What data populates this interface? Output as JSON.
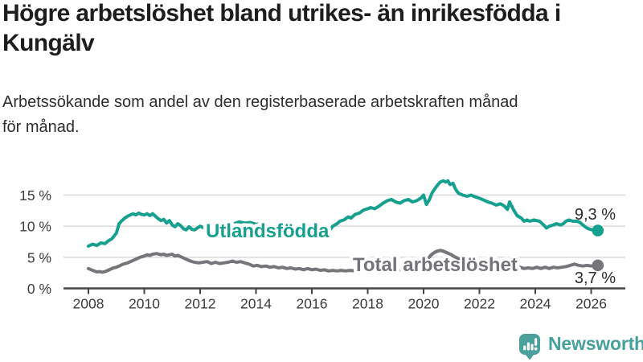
{
  "header": {
    "title": {
      "line1": "Högre arbetslöshet bland utrikes- än inrikesfödda i",
      "line2": "Kungälv"
    },
    "subtitle": {
      "line1": "Arbetssökande som andel av den registerbaserade arbetskraften månad",
      "line2": "för månad."
    }
  },
  "chart_data": {
    "type": "line",
    "title": "Högre arbetslöshet bland utrikes- än inrikesfödda i Kungälv",
    "subtitle": "Arbetssökande som andel av den registerbaserade arbetskraften månad för månad.",
    "unit": "%",
    "grid": true,
    "legend_position": "inline-on-line",
    "x_axis": {
      "range": [
        2007.1,
        2027.2
      ],
      "ticks": [
        {
          "year": 2008,
          "label": "2008"
        },
        {
          "year": 2010,
          "label": "2010"
        },
        {
          "year": 2012,
          "label": "2012"
        },
        {
          "year": 2014,
          "label": "2014"
        },
        {
          "year": 2016,
          "label": "2016"
        },
        {
          "year": 2018,
          "label": "2018"
        },
        {
          "year": 2020,
          "label": "2020"
        },
        {
          "year": 2022,
          "label": "2022"
        },
        {
          "year": 2024,
          "label": "2024"
        },
        {
          "year": 2026,
          "label": "2026"
        }
      ]
    },
    "y_axis": {
      "range": [
        0,
        18
      ],
      "ticks": [
        {
          "value": 0,
          "label": "0 %"
        },
        {
          "value": 5,
          "label": "5 %"
        },
        {
          "value": 10,
          "label": "10 %"
        },
        {
          "value": 15,
          "label": "15 %"
        }
      ]
    },
    "series": [
      {
        "name": "Utlandsfödda",
        "color": "#16a08f",
        "end_value": 9.3,
        "end_label": "9,3 %",
        "points": [
          [
            2008.0,
            6.8
          ],
          [
            2008.15,
            7.1
          ],
          [
            2008.3,
            6.9
          ],
          [
            2008.45,
            7.3
          ],
          [
            2008.6,
            7.2
          ],
          [
            2008.7,
            7.6
          ],
          [
            2008.85,
            8.0
          ],
          [
            2009.0,
            8.9
          ],
          [
            2009.1,
            10.4
          ],
          [
            2009.2,
            10.9
          ],
          [
            2009.3,
            11.3
          ],
          [
            2009.4,
            11.6
          ],
          [
            2009.5,
            11.8
          ],
          [
            2009.6,
            12.0
          ],
          [
            2009.7,
            11.8
          ],
          [
            2009.8,
            12.1
          ],
          [
            2009.9,
            11.9
          ],
          [
            2010.0,
            11.8
          ],
          [
            2010.1,
            12.0
          ],
          [
            2010.2,
            11.7
          ],
          [
            2010.3,
            12.0
          ],
          [
            2010.4,
            11.6
          ],
          [
            2010.5,
            11.2
          ],
          [
            2010.6,
            10.9
          ],
          [
            2010.7,
            11.1
          ],
          [
            2010.8,
            10.5
          ],
          [
            2010.9,
            10.9
          ],
          [
            2011.0,
            10.2
          ],
          [
            2011.1,
            9.9
          ],
          [
            2011.2,
            10.4
          ],
          [
            2011.3,
            10.1
          ],
          [
            2011.4,
            9.6
          ],
          [
            2011.5,
            9.4
          ],
          [
            2011.6,
            9.9
          ],
          [
            2011.7,
            9.5
          ],
          [
            2011.8,
            9.4
          ],
          [
            2011.9,
            9.7
          ],
          [
            2012.0,
            10.0
          ],
          [
            2012.15,
            9.7
          ],
          [
            2012.4,
            9.6
          ],
          [
            2012.6,
            9.9
          ],
          [
            2012.8,
            10.3
          ],
          [
            2013.0,
            10.6
          ],
          [
            2013.2,
            10.4
          ],
          [
            2013.4,
            10.7
          ],
          [
            2013.6,
            10.5
          ],
          [
            2013.8,
            10.6
          ],
          [
            2014.0,
            10.3
          ],
          [
            2014.2,
            10.4
          ],
          [
            2014.4,
            10.0
          ],
          [
            2014.6,
            10.2
          ],
          [
            2014.8,
            9.8
          ],
          [
            2015.0,
            9.9
          ],
          [
            2015.2,
            9.6
          ],
          [
            2015.4,
            9.5
          ],
          [
            2015.6,
            9.3
          ],
          [
            2015.8,
            9.2
          ],
          [
            2016.0,
            9.0
          ],
          [
            2016.15,
            8.9
          ],
          [
            2016.3,
            8.4
          ],
          [
            2016.45,
            8.6
          ],
          [
            2016.6,
            9.1
          ],
          [
            2016.75,
            10.0
          ],
          [
            2016.9,
            10.4
          ],
          [
            2017.0,
            10.8
          ],
          [
            2017.15,
            11.0
          ],
          [
            2017.3,
            11.5
          ],
          [
            2017.4,
            11.3
          ],
          [
            2017.55,
            11.9
          ],
          [
            2017.7,
            12.1
          ],
          [
            2017.85,
            12.6
          ],
          [
            2018.0,
            12.8
          ],
          [
            2018.1,
            13.0
          ],
          [
            2018.25,
            12.8
          ],
          [
            2018.4,
            13.2
          ],
          [
            2018.55,
            13.7
          ],
          [
            2018.7,
            14.1
          ],
          [
            2018.85,
            14.3
          ],
          [
            2019.0,
            13.9
          ],
          [
            2019.15,
            13.7
          ],
          [
            2019.3,
            14.1
          ],
          [
            2019.45,
            14.3
          ],
          [
            2019.6,
            13.9
          ],
          [
            2019.75,
            14.1
          ],
          [
            2019.9,
            14.5
          ],
          [
            2020.0,
            15.0
          ],
          [
            2020.1,
            13.5
          ],
          [
            2020.2,
            14.2
          ],
          [
            2020.3,
            15.3
          ],
          [
            2020.4,
            16.0
          ],
          [
            2020.5,
            16.6
          ],
          [
            2020.6,
            17.1
          ],
          [
            2020.7,
            17.3
          ],
          [
            2020.8,
            17.1
          ],
          [
            2020.87,
            17.3
          ],
          [
            2020.95,
            16.7
          ],
          [
            2021.05,
            16.9
          ],
          [
            2021.15,
            15.9
          ],
          [
            2021.25,
            15.3
          ],
          [
            2021.4,
            15.0
          ],
          [
            2021.55,
            14.8
          ],
          [
            2021.7,
            15.0
          ],
          [
            2021.85,
            14.7
          ],
          [
            2022.0,
            14.5
          ],
          [
            2022.15,
            14.2
          ],
          [
            2022.3,
            13.9
          ],
          [
            2022.45,
            13.7
          ],
          [
            2022.6,
            13.4
          ],
          [
            2022.75,
            13.6
          ],
          [
            2022.9,
            13.2
          ],
          [
            2023.0,
            12.7
          ],
          [
            2023.08,
            13.9
          ],
          [
            2023.2,
            12.8
          ],
          [
            2023.35,
            11.7
          ],
          [
            2023.5,
            11.3
          ],
          [
            2023.6,
            10.8
          ],
          [
            2023.7,
            11.0
          ],
          [
            2023.8,
            10.8
          ],
          [
            2023.95,
            11.0
          ],
          [
            2024.15,
            10.8
          ],
          [
            2024.3,
            10.2
          ],
          [
            2024.4,
            9.7
          ],
          [
            2024.5,
            10.0
          ],
          [
            2024.65,
            10.2
          ],
          [
            2024.75,
            10.4
          ],
          [
            2024.9,
            10.2
          ],
          [
            2025.0,
            10.4
          ],
          [
            2025.1,
            10.8
          ],
          [
            2025.2,
            11.0
          ],
          [
            2025.35,
            10.8
          ],
          [
            2025.5,
            10.8
          ],
          [
            2025.6,
            10.6
          ],
          [
            2025.7,
            10.2
          ],
          [
            2025.85,
            9.7
          ],
          [
            2025.95,
            9.5
          ],
          [
            2026.05,
            9.4
          ],
          [
            2026.24,
            9.3
          ]
        ]
      },
      {
        "name": "Total arbetslöshet",
        "color": "#75757a",
        "end_value": 3.7,
        "end_label": "3,7 %",
        "points": [
          [
            2008.0,
            3.2
          ],
          [
            2008.1,
            3.0
          ],
          [
            2008.2,
            2.8
          ],
          [
            2008.3,
            2.65
          ],
          [
            2008.4,
            2.7
          ],
          [
            2008.5,
            2.6
          ],
          [
            2008.6,
            2.7
          ],
          [
            2008.7,
            2.9
          ],
          [
            2008.8,
            3.1
          ],
          [
            2008.9,
            3.3
          ],
          [
            2009.0,
            3.4
          ],
          [
            2009.1,
            3.6
          ],
          [
            2009.25,
            3.9
          ],
          [
            2009.4,
            4.1
          ],
          [
            2009.55,
            4.4
          ],
          [
            2009.7,
            4.7
          ],
          [
            2009.85,
            5.0
          ],
          [
            2010.0,
            5.2
          ],
          [
            2010.1,
            5.4
          ],
          [
            2010.2,
            5.3
          ],
          [
            2010.3,
            5.5
          ],
          [
            2010.45,
            5.6
          ],
          [
            2010.6,
            5.4
          ],
          [
            2010.7,
            5.5
          ],
          [
            2010.8,
            5.3
          ],
          [
            2010.9,
            5.4
          ],
          [
            2011.0,
            5.5
          ],
          [
            2011.1,
            5.2
          ],
          [
            2011.2,
            5.3
          ],
          [
            2011.35,
            5.0
          ],
          [
            2011.5,
            4.7
          ],
          [
            2011.65,
            4.4
          ],
          [
            2011.8,
            4.2
          ],
          [
            2011.95,
            4.1
          ],
          [
            2012.1,
            4.2
          ],
          [
            2012.25,
            4.3
          ],
          [
            2012.4,
            4.0
          ],
          [
            2012.55,
            4.2
          ],
          [
            2012.7,
            4.0
          ],
          [
            2012.85,
            4.1
          ],
          [
            2013.0,
            4.2
          ],
          [
            2013.15,
            4.4
          ],
          [
            2013.3,
            4.2
          ],
          [
            2013.45,
            4.3
          ],
          [
            2013.6,
            4.1
          ],
          [
            2013.75,
            3.9
          ],
          [
            2013.9,
            3.6
          ],
          [
            2014.05,
            3.7
          ],
          [
            2014.2,
            3.5
          ],
          [
            2014.35,
            3.6
          ],
          [
            2014.5,
            3.4
          ],
          [
            2014.65,
            3.5
          ],
          [
            2014.8,
            3.3
          ],
          [
            2014.95,
            3.4
          ],
          [
            2015.1,
            3.2
          ],
          [
            2015.25,
            3.3
          ],
          [
            2015.4,
            3.1
          ],
          [
            2015.55,
            3.2
          ],
          [
            2015.7,
            3.0
          ],
          [
            2015.85,
            3.2
          ],
          [
            2016.0,
            3.0
          ],
          [
            2016.15,
            3.1
          ],
          [
            2016.3,
            2.9
          ],
          [
            2016.45,
            3.0
          ],
          [
            2016.6,
            2.8
          ],
          [
            2016.75,
            2.9
          ],
          [
            2016.9,
            2.8
          ],
          [
            2017.05,
            2.9
          ],
          [
            2017.2,
            2.8
          ],
          [
            2017.35,
            2.9
          ],
          [
            2017.55,
            2.8
          ],
          [
            2017.75,
            2.9
          ],
          [
            2017.95,
            2.8
          ],
          [
            2018.15,
            2.9
          ],
          [
            2018.35,
            2.8
          ],
          [
            2018.55,
            2.9
          ],
          [
            2018.75,
            2.8
          ],
          [
            2018.95,
            2.9
          ],
          [
            2019.15,
            3.0
          ],
          [
            2019.35,
            3.1
          ],
          [
            2019.55,
            3.2
          ],
          [
            2019.75,
            3.3
          ],
          [
            2019.9,
            3.5
          ],
          [
            2020.0,
            3.8
          ],
          [
            2020.1,
            4.4
          ],
          [
            2020.2,
            5.0
          ],
          [
            2020.3,
            5.5
          ],
          [
            2020.4,
            5.8
          ],
          [
            2020.5,
            6.0
          ],
          [
            2020.6,
            6.1
          ],
          [
            2020.7,
            6.0
          ],
          [
            2020.8,
            5.8
          ],
          [
            2020.9,
            5.6
          ],
          [
            2021.0,
            5.4
          ],
          [
            2021.1,
            5.1
          ],
          [
            2021.25,
            4.8
          ],
          [
            2021.4,
            4.5
          ],
          [
            2021.55,
            4.2
          ],
          [
            2021.7,
            4.0
          ],
          [
            2021.85,
            3.8
          ],
          [
            2022.0,
            3.7
          ],
          [
            2022.15,
            3.6
          ],
          [
            2022.3,
            3.5
          ],
          [
            2022.5,
            3.4
          ],
          [
            2022.7,
            3.3
          ],
          [
            2022.85,
            3.4
          ],
          [
            2023.0,
            3.5
          ],
          [
            2023.15,
            3.4
          ],
          [
            2023.3,
            3.2
          ],
          [
            2023.45,
            3.4
          ],
          [
            2023.6,
            3.2
          ],
          [
            2023.75,
            3.3
          ],
          [
            2023.9,
            3.2
          ],
          [
            2024.05,
            3.4
          ],
          [
            2024.2,
            3.2
          ],
          [
            2024.35,
            3.4
          ],
          [
            2024.5,
            3.2
          ],
          [
            2024.65,
            3.4
          ],
          [
            2024.8,
            3.3
          ],
          [
            2024.95,
            3.4
          ],
          [
            2025.1,
            3.5
          ],
          [
            2025.25,
            3.7
          ],
          [
            2025.4,
            3.9
          ],
          [
            2025.55,
            3.7
          ],
          [
            2025.7,
            3.6
          ],
          [
            2025.85,
            3.7
          ],
          [
            2026.0,
            3.6
          ],
          [
            2026.1,
            3.7
          ],
          [
            2026.24,
            3.7
          ]
        ]
      }
    ]
  },
  "branding": {
    "logo_text": "Newsworthy",
    "logo_color": "#46a09b",
    "logo_icon": "bar-chart-speech-bubble-icon"
  }
}
